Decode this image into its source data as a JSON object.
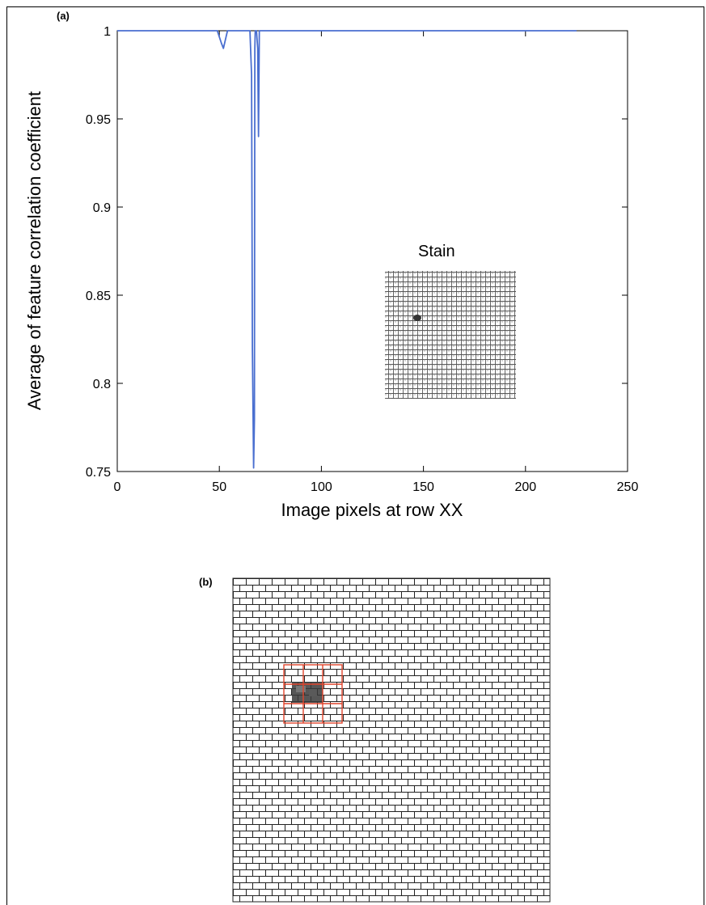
{
  "panels": {
    "a_label": "(a)",
    "b_label": "(b)"
  },
  "inset": {
    "label": "Stain"
  },
  "chart_data": {
    "type": "line",
    "title": "",
    "xlabel": "Image pixels at row XX",
    "ylabel": "Average of feature correlation coefficient",
    "xlim": [
      0,
      250
    ],
    "ylim": [
      0.75,
      1
    ],
    "xticks": [
      0,
      50,
      100,
      150,
      200,
      250
    ],
    "xtick_labels": [
      "0",
      "50",
      "100",
      "150",
      "200",
      "250"
    ],
    "yticks": [
      0.75,
      0.8,
      0.85,
      0.9,
      0.95,
      1
    ],
    "ytick_labels": [
      "0.75",
      "0.8",
      "0.85",
      "0.9",
      "0.95",
      "1"
    ],
    "grid": false,
    "line_color": "#4a6fd0",
    "series": [
      {
        "values": [
          [
            0,
            1
          ],
          [
            49,
            1
          ],
          [
            51,
            0.993
          ],
          [
            52,
            0.99
          ],
          [
            54,
            1
          ],
          [
            65,
            1
          ],
          [
            65.8,
            0.975
          ],
          [
            66.2,
            0.82
          ],
          [
            66.8,
            0.752
          ],
          [
            67.2,
            0.78
          ],
          [
            67.4,
            0.99
          ],
          [
            67.6,
            1
          ],
          [
            68.2,
            1
          ],
          [
            68.8,
            0.99
          ],
          [
            69.2,
            0.94
          ],
          [
            69.6,
            1
          ],
          [
            70,
            1
          ],
          [
            225,
            1
          ]
        ]
      }
    ]
  }
}
